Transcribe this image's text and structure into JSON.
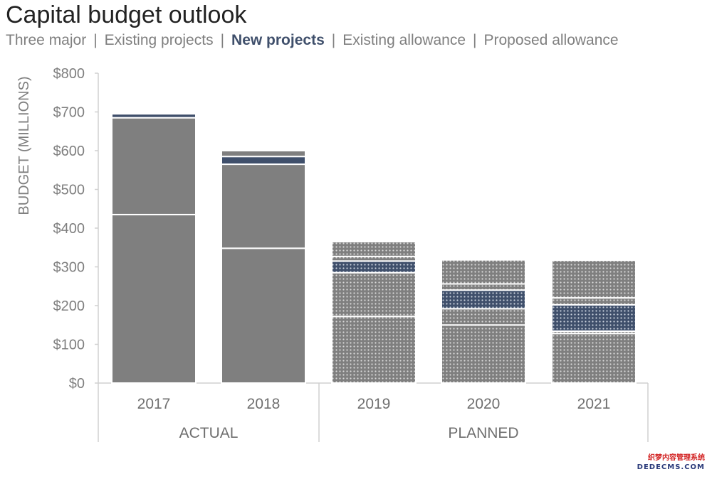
{
  "title": "Capital budget outlook",
  "legend": [
    {
      "label": "Three major",
      "highlight": false,
      "sep_after": "|"
    },
    {
      "label": "Existing projects",
      "highlight": false,
      "sep_after": "|"
    },
    {
      "label": "New projects",
      "highlight": true,
      "sep_after": "|"
    },
    {
      "label": "Existing allowance",
      "highlight": false,
      "sep_after": "|"
    },
    {
      "label": "Proposed allowance",
      "highlight": false,
      "sep_after": ""
    }
  ],
  "colors": {
    "gray": "#7f7f7f",
    "navy": "#3f4f6b",
    "axis": "#d0d0d0",
    "text": "#7f7f7f"
  },
  "watermark": {
    "cn": "织梦内容管理系统",
    "en": "DEDECMS.COM"
  },
  "chart_data": {
    "type": "bar",
    "stacked": true,
    "ylabel": "BUDGET (MILLIONS)",
    "ylim": [
      0,
      800
    ],
    "yticks": [
      "$0",
      "$100",
      "$200",
      "$300",
      "$400",
      "$500",
      "$600",
      "$700",
      "$800"
    ],
    "categories": [
      "2017",
      "2018",
      "2019",
      "2020",
      "2021"
    ],
    "groups": [
      {
        "label": "ACTUAL",
        "categories": [
          "2017",
          "2018"
        ]
      },
      {
        "label": "PLANNED",
        "categories": [
          "2019",
          "2020",
          "2021"
        ]
      }
    ],
    "planned_pattern": "dotted",
    "series": [
      {
        "name": "Three major",
        "values": [
          435,
          348,
          172,
          150,
          128
        ]
      },
      {
        "name": "Existing projects",
        "values": [
          250,
          217,
          113,
          42,
          6
        ]
      },
      {
        "name": "New projects",
        "values": [
          10,
          20,
          30,
          48,
          68
        ]
      },
      {
        "name": "Existing allowance",
        "values": [
          0,
          15,
          12,
          16,
          18
        ]
      },
      {
        "name": "Proposed allowance",
        "values": [
          0,
          0,
          38,
          62,
          97
        ]
      }
    ],
    "series_colors": [
      "#7f7f7f",
      "#7f7f7f",
      "#3f4f6b",
      "#7f7f7f",
      "#7f7f7f"
    ]
  }
}
